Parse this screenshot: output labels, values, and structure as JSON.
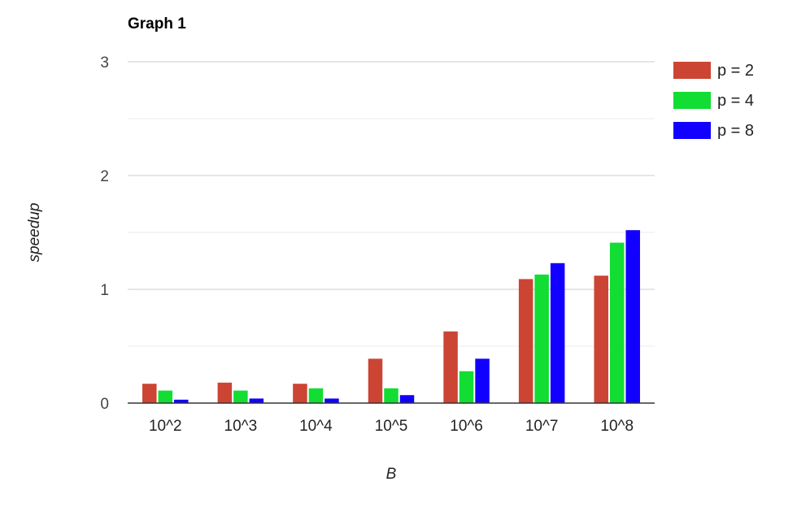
{
  "chart_data": {
    "type": "bar",
    "title": "Graph 1",
    "xlabel": "B",
    "ylabel": "speedup",
    "categories": [
      "10^2",
      "10^3",
      "10^4",
      "10^5",
      "10^6",
      "10^7",
      "10^8"
    ],
    "series": [
      {
        "name": "p = 2",
        "color": "#cc4433",
        "values": [
          0.17,
          0.18,
          0.17,
          0.39,
          0.63,
          1.09,
          1.12
        ]
      },
      {
        "name": "p = 4",
        "color": "#11dd33",
        "values": [
          0.11,
          0.11,
          0.13,
          0.13,
          0.28,
          1.13,
          1.41
        ]
      },
      {
        "name": "p = 8",
        "color": "#1100ff",
        "values": [
          0.03,
          0.04,
          0.04,
          0.07,
          0.39,
          1.23,
          1.52
        ]
      }
    ],
    "ylim": [
      0,
      3
    ],
    "yticks": [
      "0",
      "1",
      "2",
      "3"
    ],
    "grid": true,
    "legend_position": "right"
  }
}
